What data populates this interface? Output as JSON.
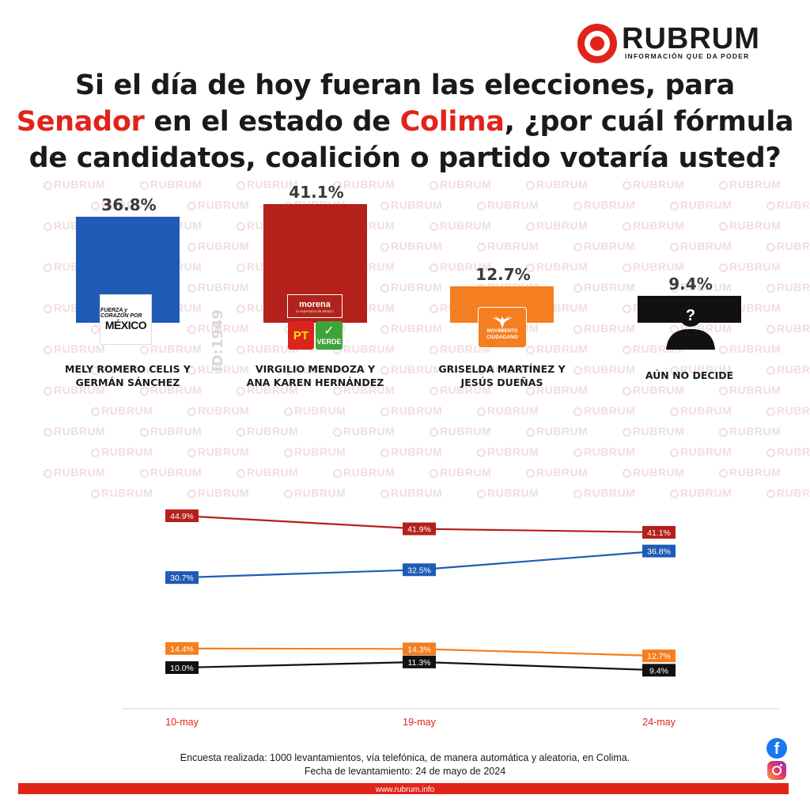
{
  "brand": {
    "name": "RUBRUM",
    "tagline": "INFORMACIÓN QUE DA PODER",
    "watermark": "RUBRUM",
    "url": "www.rubrum.info"
  },
  "title": {
    "part1": "Si el día de hoy fueran las elecciones, para",
    "highlight1": "Senador",
    "part2": " en el estado de ",
    "highlight2": "Colima",
    "part3": ", ¿por cuál fórmula",
    "part4": "de candidatos, coalición o partido votaría usted?"
  },
  "id_text": "ID:1949",
  "colors": {
    "accent": "#e2231a",
    "blue": "#1f5bb5",
    "red": "#b3211a",
    "orange": "#f47e20",
    "black": "#111111"
  },
  "logos": {
    "fcm_line1": "FUERZA y CORAZÓN POR",
    "fcm_line2": "MÉXICO",
    "morena": "morena",
    "morena_sub": "la esperanza de México",
    "pt": "PT",
    "verde": "VERDE",
    "mc_line1": "MOVIMIENTO",
    "mc_line2": "CIUDADANO"
  },
  "chart_data": [
    {
      "type": "bar",
      "categories": [
        "MELY ROMERO CELIS Y GERMÁN SÁNCHEZ",
        "VIRGILIO MENDOZA Y ANA KAREN HERNÁNDEZ",
        "GRISELDA MARTÍNEZ Y JESÚS DUEÑAS",
        "AÚN NO DECIDE"
      ],
      "category_lines": [
        [
          "MELY ROMERO CELIS Y",
          "GERMÁN SÁNCHEZ"
        ],
        [
          "VIRGILIO MENDOZA Y",
          "ANA KAREN HERNÁNDEZ"
        ],
        [
          "GRISELDA MARTÍNEZ Y",
          "JESÚS DUEÑAS"
        ],
        [
          "AÚN NO DECIDE"
        ]
      ],
      "values": [
        36.8,
        41.1,
        12.7,
        9.4
      ],
      "labels": [
        "36.8%",
        "41.1%",
        "12.7%",
        "9.4%"
      ],
      "colors": [
        "#1f5bb5",
        "#b3211a",
        "#f47e20",
        "#111111"
      ],
      "title": "",
      "xlabel": "",
      "ylabel": "",
      "grid": false
    },
    {
      "type": "line",
      "x": [
        "10-may",
        "19-may",
        "24-may"
      ],
      "series": [
        {
          "values": [
            44.9,
            41.9,
            41.1
          ],
          "labels": [
            "44.9%",
            "41.9%",
            "41.1%"
          ],
          "color": "#b3211a"
        },
        {
          "values": [
            30.7,
            32.5,
            36.8
          ],
          "labels": [
            "30.7%",
            "32.5%",
            "36.8%"
          ],
          "color": "#1f5bb5"
        },
        {
          "values": [
            14.4,
            14.3,
            12.7
          ],
          "labels": [
            "14.4%",
            "14.3%",
            "12.7%"
          ],
          "color": "#f47e20"
        },
        {
          "values": [
            10.0,
            11.3,
            9.4
          ],
          "labels": [
            "10.0%",
            "11.3%",
            "9.4%"
          ],
          "color": "#111111"
        }
      ],
      "title": "",
      "xlabel": "",
      "ylabel": "",
      "grid": false
    }
  ],
  "footer": {
    "line1": "Encuesta realizada: 1000 levantamientos, vía telefónica, de manera automática y aleatoria, en Colima.",
    "line2": "Fecha de levantamiento: 24 de mayo de 2024"
  },
  "social": {
    "facebook_icon": "facebook-icon",
    "instagram_icon": "instagram-icon"
  }
}
